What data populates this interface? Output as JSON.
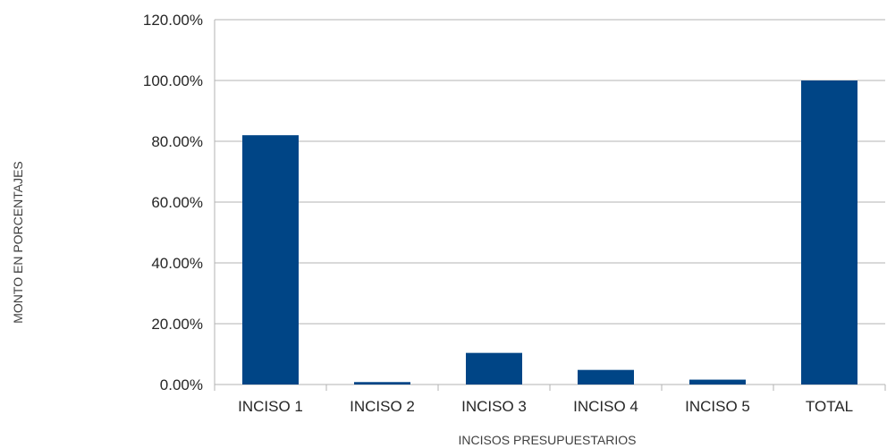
{
  "chart_data": {
    "type": "bar",
    "categories": [
      "INCISO 1",
      "INCISO 2",
      "INCISO 3",
      "INCISO 4",
      "INCISO 5",
      "TOTAL"
    ],
    "series": [
      {
        "values": [
          82.0,
          0.8,
          10.4,
          4.8,
          1.6,
          100.0
        ]
      }
    ],
    "xlabel": "INCISOS PRESUPUESTARIOS",
    "ylabel": "MONTO EN  PORCENTAJES",
    "ylim": [
      0,
      120
    ],
    "yticks": [
      "0.00%",
      "20.00%",
      "40.00%",
      "60.00%",
      "80.00%",
      "100.00%",
      "120.00%"
    ],
    "grid": true,
    "legend": "none",
    "bar_color": "#004586",
    "grid_color": "#b3b3b3"
  }
}
